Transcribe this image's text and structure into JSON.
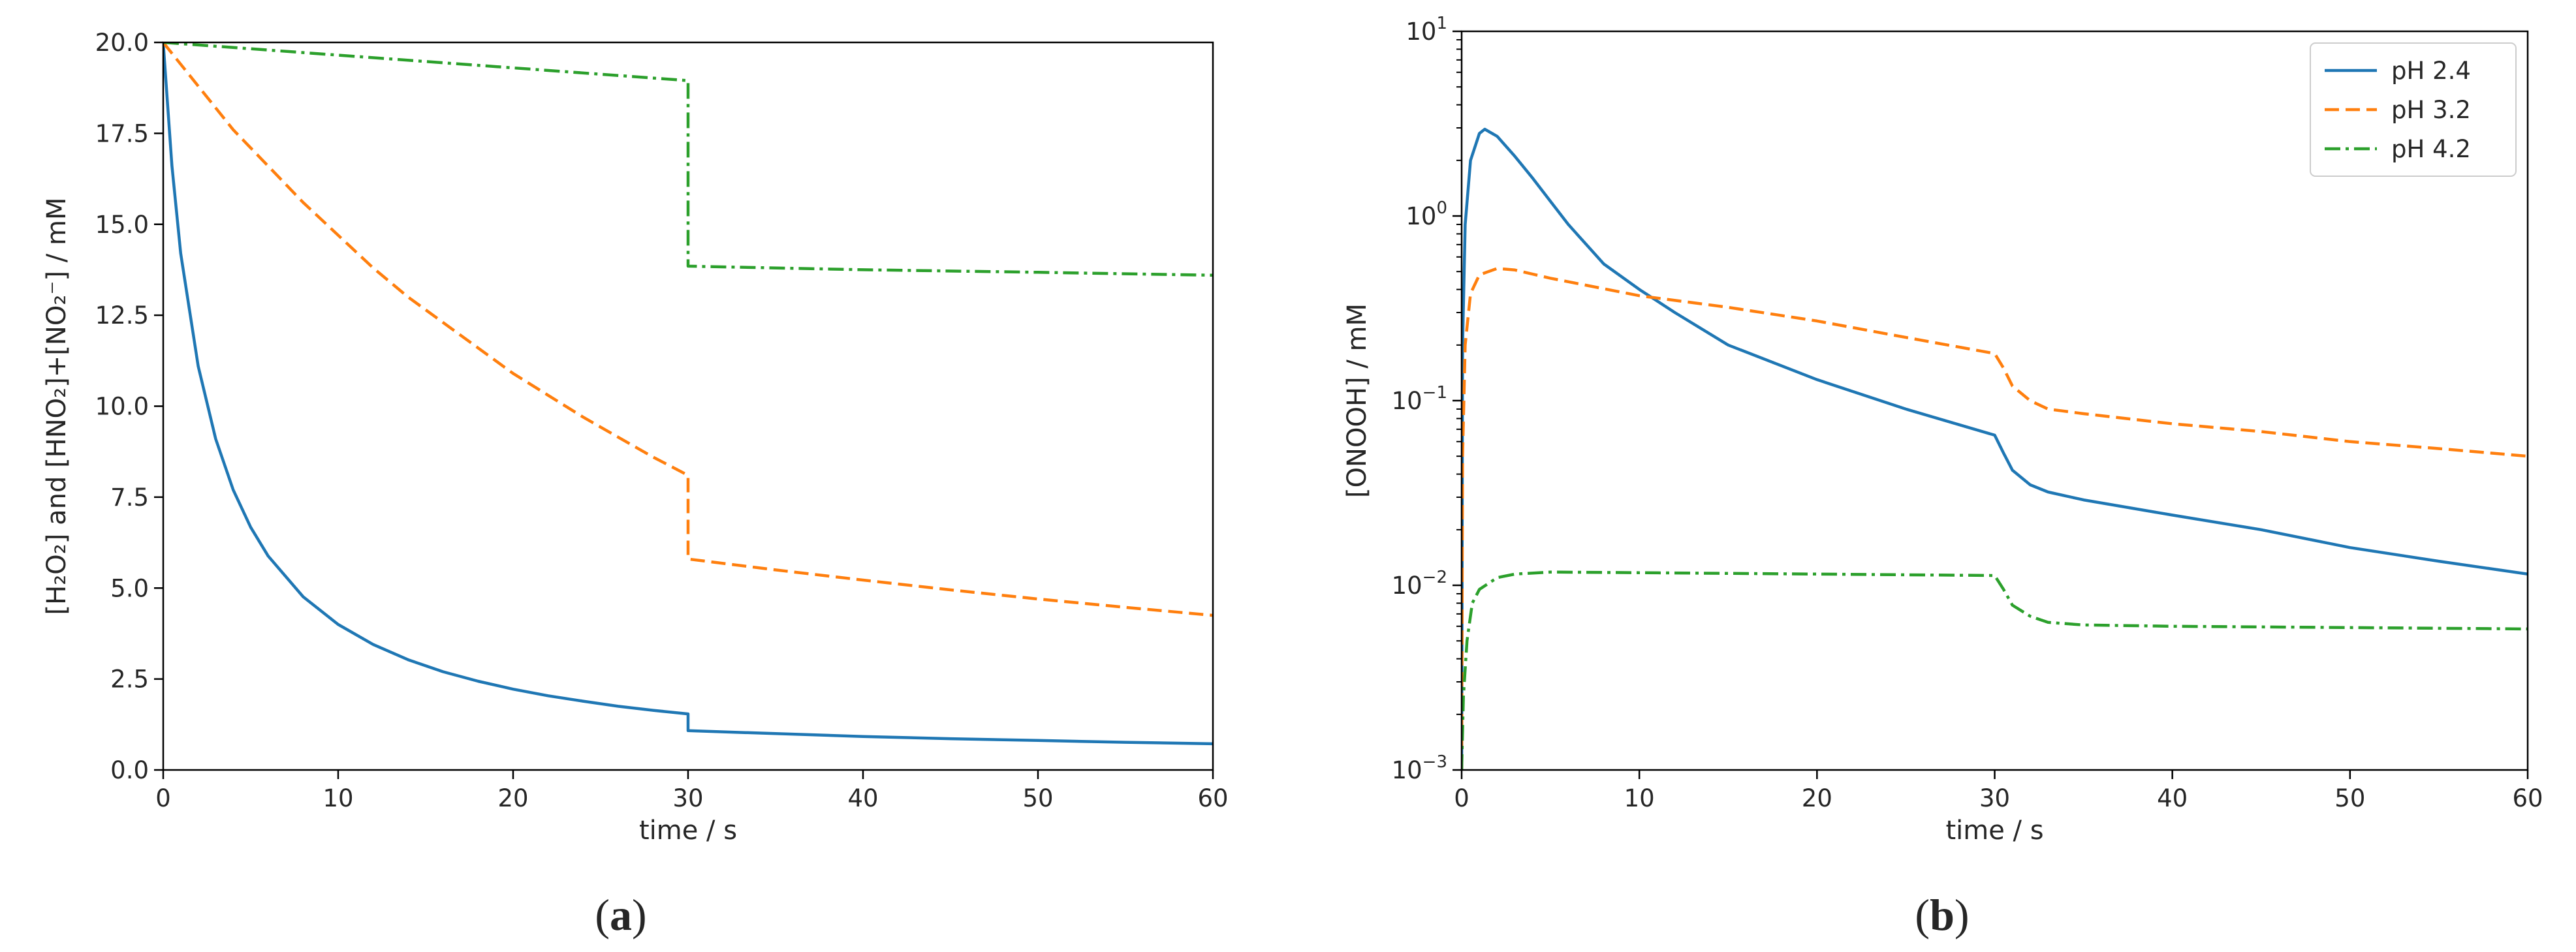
{
  "chart_data": [
    {
      "panel_label": "a",
      "type": "line",
      "xlabel": "time / s",
      "ylabel": "[H₂O₂] and [HNO₂]+[NO₂⁻] / mM",
      "xlim": [
        0,
        60
      ],
      "ylim": [
        0,
        20
      ],
      "xscale": "linear",
      "yscale": "linear",
      "grid": false,
      "legend": "none",
      "x_ticks": [
        0,
        10,
        20,
        30,
        40,
        50,
        60
      ],
      "x_tick_labels": [
        "0",
        "10",
        "20",
        "30",
        "40",
        "50",
        "60"
      ],
      "y_ticks": [
        0,
        2.5,
        5,
        7.5,
        10,
        12.5,
        15,
        17.5,
        20
      ],
      "y_tick_labels": [
        "0.0",
        "2.5",
        "5.0",
        "7.5",
        "10.0",
        "12.5",
        "15.0",
        "17.5",
        "20.0"
      ],
      "series": [
        {
          "color": "#1f77b4",
          "dash": "solid",
          "points": [
            [
              0,
              20
            ],
            [
              0.5,
              16.6
            ],
            [
              1,
              14.2
            ],
            [
              2,
              11.1
            ],
            [
              3,
              9.1
            ],
            [
              4,
              7.7
            ],
            [
              5,
              6.67
            ],
            [
              6,
              5.88
            ],
            [
              8,
              4.76
            ],
            [
              10,
              4.0
            ],
            [
              12,
              3.45
            ],
            [
              14,
              3.03
            ],
            [
              16,
              2.7
            ],
            [
              18,
              2.44
            ],
            [
              20,
              2.22
            ],
            [
              22,
              2.04
            ],
            [
              24,
              1.89
            ],
            [
              26,
              1.75
            ],
            [
              28,
              1.64
            ],
            [
              30,
              1.54
            ],
            [
              30,
              1.08
            ],
            [
              35,
              1.0
            ],
            [
              40,
              0.92
            ],
            [
              45,
              0.86
            ],
            [
              50,
              0.81
            ],
            [
              55,
              0.76
            ],
            [
              60,
              0.72
            ]
          ]
        },
        {
          "color": "#ff7f0e",
          "dash": "dashed",
          "points": [
            [
              0,
              20
            ],
            [
              2,
              18.8
            ],
            [
              4,
              17.6
            ],
            [
              6,
              16.6
            ],
            [
              8,
              15.6
            ],
            [
              10,
              14.7
            ],
            [
              12,
              13.8
            ],
            [
              14,
              13.0
            ],
            [
              16,
              12.3
            ],
            [
              18,
              11.6
            ],
            [
              20,
              10.9
            ],
            [
              22,
              10.3
            ],
            [
              24,
              9.7
            ],
            [
              26,
              9.15
            ],
            [
              28,
              8.6
            ],
            [
              30,
              8.1
            ],
            [
              30,
              5.8
            ],
            [
              35,
              5.5
            ],
            [
              40,
              5.22
            ],
            [
              45,
              4.95
            ],
            [
              50,
              4.7
            ],
            [
              55,
              4.47
            ],
            [
              60,
              4.25
            ]
          ]
        },
        {
          "color": "#2ca02c",
          "dash": "dashdot",
          "points": [
            [
              0,
              20
            ],
            [
              10,
              19.65
            ],
            [
              20,
              19.3
            ],
            [
              30,
              18.95
            ],
            [
              30,
              13.85
            ],
            [
              40,
              13.75
            ],
            [
              50,
              13.68
            ],
            [
              60,
              13.6
            ]
          ]
        }
      ]
    },
    {
      "panel_label": "b",
      "type": "line",
      "xlabel": "time / s",
      "ylabel": "[ONOOH] / mM",
      "xlim": [
        0,
        60
      ],
      "ylim": [
        0.001,
        10
      ],
      "xscale": "linear",
      "yscale": "log",
      "grid": false,
      "legend": "top-right",
      "x_ticks": [
        0,
        10,
        20,
        30,
        40,
        50,
        60
      ],
      "x_tick_labels": [
        "0",
        "10",
        "20",
        "30",
        "40",
        "50",
        "60"
      ],
      "y_ticks": [
        0.001,
        0.01,
        0.1,
        1,
        10
      ],
      "y_tick_bases": [
        "10",
        "10",
        "10",
        "10",
        "10"
      ],
      "y_tick_exponents": [
        "−3",
        "−2",
        "−1",
        "0",
        "1"
      ],
      "series": [
        {
          "name": "pH 2.4",
          "color": "#1f77b4",
          "dash": "solid",
          "points": [
            [
              0,
              0.001
            ],
            [
              0.05,
              0.2
            ],
            [
              0.2,
              0.9
            ],
            [
              0.5,
              2.0
            ],
            [
              1,
              2.8
            ],
            [
              1.3,
              2.95
            ],
            [
              2,
              2.7
            ],
            [
              3,
              2.1
            ],
            [
              4,
              1.6
            ],
            [
              5,
              1.2
            ],
            [
              6,
              0.9
            ],
            [
              8,
              0.55
            ],
            [
              10,
              0.4
            ],
            [
              12,
              0.3
            ],
            [
              15,
              0.2
            ],
            [
              20,
              0.13
            ],
            [
              25,
              0.09
            ],
            [
              30,
              0.065
            ],
            [
              30.5,
              0.052
            ],
            [
              31,
              0.042
            ],
            [
              32,
              0.035
            ],
            [
              33,
              0.032
            ],
            [
              35,
              0.029
            ],
            [
              40,
              0.024
            ],
            [
              45,
              0.02
            ],
            [
              50,
              0.016
            ],
            [
              55,
              0.0135
            ],
            [
              60,
              0.0115
            ]
          ]
        },
        {
          "name": "pH 3.2",
          "color": "#ff7f0e",
          "dash": "dashed",
          "points": [
            [
              0,
              0.001
            ],
            [
              0.05,
              0.05
            ],
            [
              0.2,
              0.2
            ],
            [
              0.5,
              0.38
            ],
            [
              1,
              0.48
            ],
            [
              2,
              0.52
            ],
            [
              3,
              0.51
            ],
            [
              5,
              0.46
            ],
            [
              10,
              0.37
            ],
            [
              15,
              0.32
            ],
            [
              20,
              0.27
            ],
            [
              25,
              0.22
            ],
            [
              30,
              0.18
            ],
            [
              30.5,
              0.15
            ],
            [
              31,
              0.12
            ],
            [
              32,
              0.1
            ],
            [
              33,
              0.09
            ],
            [
              35,
              0.085
            ],
            [
              40,
              0.075
            ],
            [
              45,
              0.068
            ],
            [
              50,
              0.06
            ],
            [
              55,
              0.055
            ],
            [
              60,
              0.05
            ]
          ]
        },
        {
          "name": "pH 4.2",
          "color": "#2ca02c",
          "dash": "dashdot",
          "points": [
            [
              0,
              0.001
            ],
            [
              0.1,
              0.0025
            ],
            [
              0.3,
              0.005
            ],
            [
              0.6,
              0.008
            ],
            [
              1,
              0.0095
            ],
            [
              2,
              0.011
            ],
            [
              3,
              0.0115
            ],
            [
              5,
              0.0118
            ],
            [
              10,
              0.0117
            ],
            [
              20,
              0.0115
            ],
            [
              30,
              0.0113
            ],
            [
              30.5,
              0.0095
            ],
            [
              31,
              0.0078
            ],
            [
              32,
              0.0068
            ],
            [
              33,
              0.0063
            ],
            [
              35,
              0.0061
            ],
            [
              40,
              0.006
            ],
            [
              50,
              0.0059
            ],
            [
              60,
              0.0058
            ]
          ]
        }
      ]
    }
  ]
}
